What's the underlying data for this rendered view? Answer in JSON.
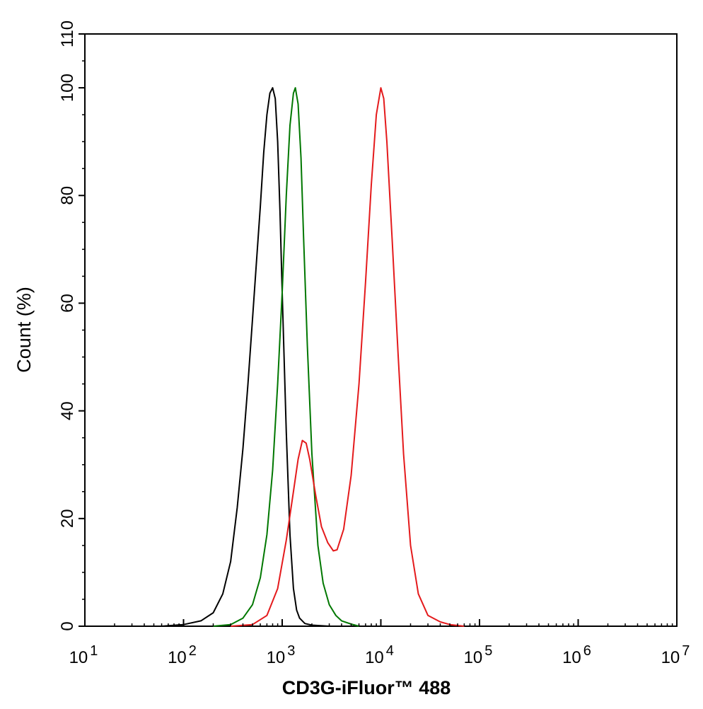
{
  "chart_data": {
    "type": "line",
    "title": "",
    "xlabel": "CD3G-iFluor™ 488",
    "ylabel": "Count  (%)",
    "x_scale": "log",
    "xlim": [
      10,
      10000000
    ],
    "ylim": [
      0,
      110
    ],
    "grid": false,
    "x_ticks": [
      {
        "value": 10,
        "base": "10",
        "exp": "1"
      },
      {
        "value": 100,
        "base": "10",
        "exp": "2"
      },
      {
        "value": 1000,
        "base": "10",
        "exp": "3"
      },
      {
        "value": 10000,
        "base": "10",
        "exp": "4"
      },
      {
        "value": 100000,
        "base": "10",
        "exp": "5"
      },
      {
        "value": 1000000,
        "base": "10",
        "exp": "6"
      },
      {
        "value": 10000000,
        "base": "10",
        "exp": "7"
      }
    ],
    "y_ticks": [
      {
        "value": 0,
        "label": "0"
      },
      {
        "value": 20,
        "label": "20"
      },
      {
        "value": 40,
        "label": "40"
      },
      {
        "value": 60,
        "label": "60"
      },
      {
        "value": 80,
        "label": "80"
      },
      {
        "value": 100,
        "label": "100"
      },
      {
        "value": 110,
        "label": "110"
      }
    ],
    "series": [
      {
        "color": "#000000",
        "points": [
          [
            60,
            0
          ],
          [
            100,
            0.3
          ],
          [
            150,
            1
          ],
          [
            200,
            2.5
          ],
          [
            250,
            6
          ],
          [
            300,
            12
          ],
          [
            350,
            22
          ],
          [
            400,
            33
          ],
          [
            450,
            45
          ],
          [
            500,
            57
          ],
          [
            550,
            68
          ],
          [
            600,
            78
          ],
          [
            650,
            88
          ],
          [
            700,
            95
          ],
          [
            750,
            99
          ],
          [
            800,
            100
          ],
          [
            850,
            98
          ],
          [
            900,
            90
          ],
          [
            950,
            77
          ],
          [
            1000,
            62
          ],
          [
            1100,
            36
          ],
          [
            1200,
            17
          ],
          [
            1300,
            7
          ],
          [
            1400,
            3
          ],
          [
            1500,
            1.5
          ],
          [
            1700,
            0.5
          ],
          [
            2000,
            0.2
          ],
          [
            3000,
            0
          ],
          [
            5000,
            0
          ]
        ]
      },
      {
        "color": "#007700",
        "points": [
          [
            200,
            0
          ],
          [
            300,
            0.3
          ],
          [
            400,
            1.5
          ],
          [
            500,
            4
          ],
          [
            600,
            9
          ],
          [
            700,
            17
          ],
          [
            800,
            29
          ],
          [
            900,
            45
          ],
          [
            1000,
            62
          ],
          [
            1100,
            80
          ],
          [
            1200,
            93
          ],
          [
            1300,
            99
          ],
          [
            1360,
            100
          ],
          [
            1450,
            97
          ],
          [
            1550,
            87
          ],
          [
            1650,
            72
          ],
          [
            1800,
            52
          ],
          [
            2000,
            32
          ],
          [
            2300,
            15
          ],
          [
            2600,
            8
          ],
          [
            3000,
            4
          ],
          [
            3500,
            2
          ],
          [
            4000,
            1
          ],
          [
            5000,
            0.4
          ],
          [
            6000,
            0
          ]
        ]
      },
      {
        "color": "#e41a1c",
        "points": [
          [
            300,
            0
          ],
          [
            500,
            0.3
          ],
          [
            700,
            2
          ],
          [
            900,
            7
          ],
          [
            1100,
            16
          ],
          [
            1300,
            25
          ],
          [
            1450,
            31
          ],
          [
            1600,
            34.5
          ],
          [
            1750,
            34
          ],
          [
            1900,
            31
          ],
          [
            2200,
            24
          ],
          [
            2500,
            18.5
          ],
          [
            2900,
            15.5
          ],
          [
            3300,
            14
          ],
          [
            3600,
            14.2
          ],
          [
            4200,
            18
          ],
          [
            5000,
            28
          ],
          [
            6000,
            45
          ],
          [
            7000,
            64
          ],
          [
            8000,
            82
          ],
          [
            9000,
            95
          ],
          [
            10000,
            100
          ],
          [
            10700,
            98
          ],
          [
            11500,
            90
          ],
          [
            13000,
            72
          ],
          [
            15000,
            50
          ],
          [
            17000,
            32
          ],
          [
            20000,
            15
          ],
          [
            24000,
            6
          ],
          [
            30000,
            2
          ],
          [
            40000,
            0.8
          ],
          [
            50000,
            0.3
          ],
          [
            70000,
            0
          ]
        ]
      }
    ]
  }
}
